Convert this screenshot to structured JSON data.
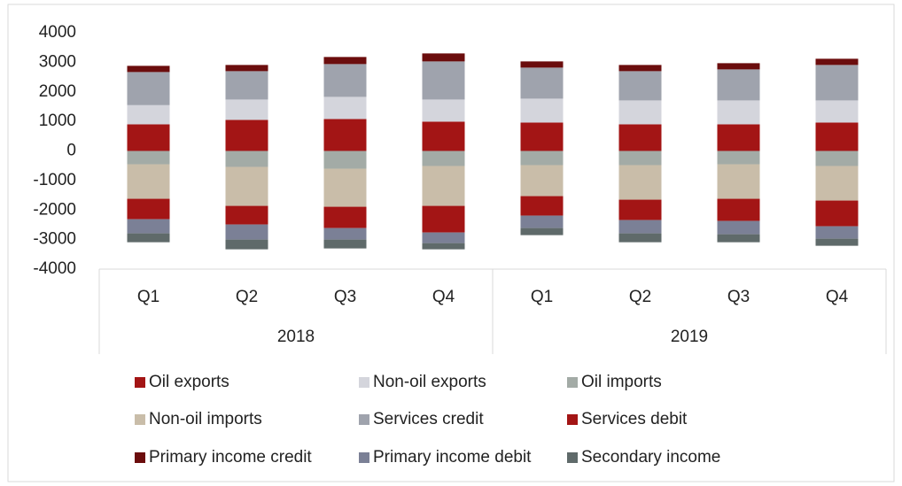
{
  "chart_data": {
    "type": "stacked_bar",
    "categories": [
      "Q1",
      "Q2",
      "Q3",
      "Q4",
      "Q1",
      "Q2",
      "Q3",
      "Q4"
    ],
    "groups": [
      "2018",
      "2019"
    ],
    "ylim": [
      -4000,
      4000
    ],
    "yticks": [
      4000,
      3000,
      2000,
      1000,
      0,
      -1000,
      -2000,
      -3000,
      -4000
    ],
    "grid": false,
    "legend": "bottom",
    "series": [
      {
        "name": "Oil exports",
        "color": "#a31515",
        "values": [
          900,
          1050,
          1080,
          990,
          960,
          900,
          900,
          960
        ]
      },
      {
        "name": "Non-oil exports",
        "color": "#d4d5dc",
        "values": [
          650,
          690,
          750,
          750,
          810,
          810,
          810,
          750
        ]
      },
      {
        "name": "Oil imports",
        "color": "#a3aba6",
        "values": [
          -450,
          -540,
          -600,
          -510,
          -480,
          -480,
          -450,
          -510
        ]
      },
      {
        "name": "Non-oil imports",
        "color": "#c9bda9",
        "values": [
          -1170,
          -1320,
          -1290,
          -1350,
          -1050,
          -1170,
          -1170,
          -1170
        ]
      },
      {
        "name": "Services credit",
        "color": "#9fa3ad",
        "values": [
          1120,
          960,
          1110,
          1290,
          1050,
          990,
          1050,
          1200
        ]
      },
      {
        "name": "Services debit",
        "color": "#a31515",
        "values": [
          -690,
          -630,
          -720,
          -900,
          -660,
          -690,
          -750,
          -870
        ]
      },
      {
        "name": "Primary income credit",
        "color": "#6b0d0d",
        "values": [
          210,
          210,
          240,
          270,
          210,
          210,
          210,
          210
        ]
      },
      {
        "name": "Primary income debit",
        "color": "#7b8096",
        "values": [
          -480,
          -510,
          -390,
          -360,
          -420,
          -450,
          -450,
          -420
        ]
      },
      {
        "name": "Secondary income",
        "color": "#5f6a6a",
        "values": [
          -300,
          -330,
          -300,
          -210,
          -240,
          -300,
          -270,
          -240
        ]
      }
    ]
  }
}
